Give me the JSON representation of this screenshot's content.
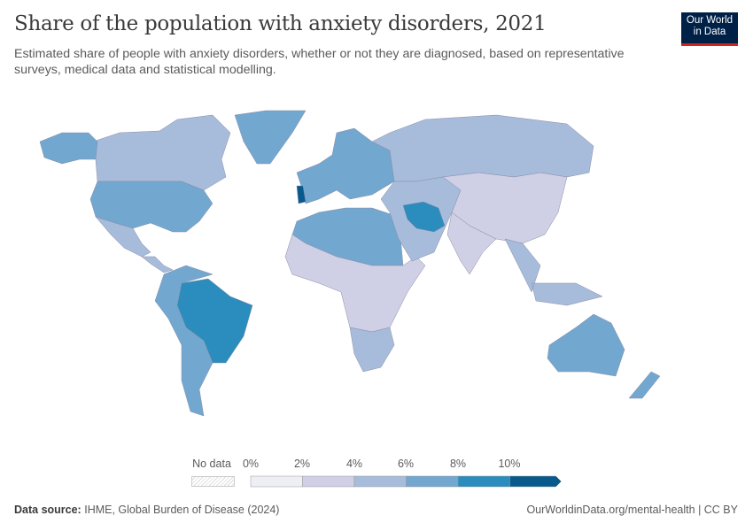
{
  "header": {
    "title": "Share of the population with anxiety disorders, 2021",
    "subtitle": "Estimated share of people with anxiety disorders, whether or not they are diagnosed, based on representative surveys, medical data and statistical modelling.",
    "logo": "Our World in Data"
  },
  "legend": {
    "no_data_label": "No data",
    "ticks": [
      "0%",
      "2%",
      "4%",
      "6%",
      "8%",
      "10%"
    ],
    "bins": [
      {
        "range": "0-2%",
        "color": "#eeeef5"
      },
      {
        "range": "2-4%",
        "color": "#cfcfe5"
      },
      {
        "range": "4-6%",
        "color": "#a7bcdb"
      },
      {
        "range": "6-8%",
        "color": "#72a7cf"
      },
      {
        "range": "8-10%",
        "color": "#2b8cbe"
      },
      {
        "range": ">10%",
        "color": "#085a8c"
      }
    ]
  },
  "map": {
    "regions": [
      {
        "name": "Canada",
        "bin": 2
      },
      {
        "name": "Alaska",
        "bin": 3
      },
      {
        "name": "Greenland",
        "bin": 3
      },
      {
        "name": "United States",
        "bin": 3
      },
      {
        "name": "Mexico",
        "bin": 2
      },
      {
        "name": "Central America",
        "bin": 2
      },
      {
        "name": "Brazil",
        "bin": 4
      },
      {
        "name": "South America (rest)",
        "bin": 3
      },
      {
        "name": "Western Europe",
        "bin": 3
      },
      {
        "name": "Portugal",
        "bin": 5
      },
      {
        "name": "Russia",
        "bin": 2
      },
      {
        "name": "North Africa",
        "bin": 3
      },
      {
        "name": "Sub-Saharan Africa",
        "bin": 1
      },
      {
        "name": "Southern Africa",
        "bin": 2
      },
      {
        "name": "Middle East",
        "bin": 2
      },
      {
        "name": "Iran",
        "bin": 4
      },
      {
        "name": "China",
        "bin": 1
      },
      {
        "name": "India",
        "bin": 1
      },
      {
        "name": "Southeast Asia",
        "bin": 2
      },
      {
        "name": "Australia",
        "bin": 3
      },
      {
        "name": "New Zealand",
        "bin": 3
      }
    ]
  },
  "footer": {
    "source_label": "Data source:",
    "source": "IHME, Global Burden of Disease (2024)",
    "url": "OurWorldinData.org/mental-health | CC BY"
  }
}
